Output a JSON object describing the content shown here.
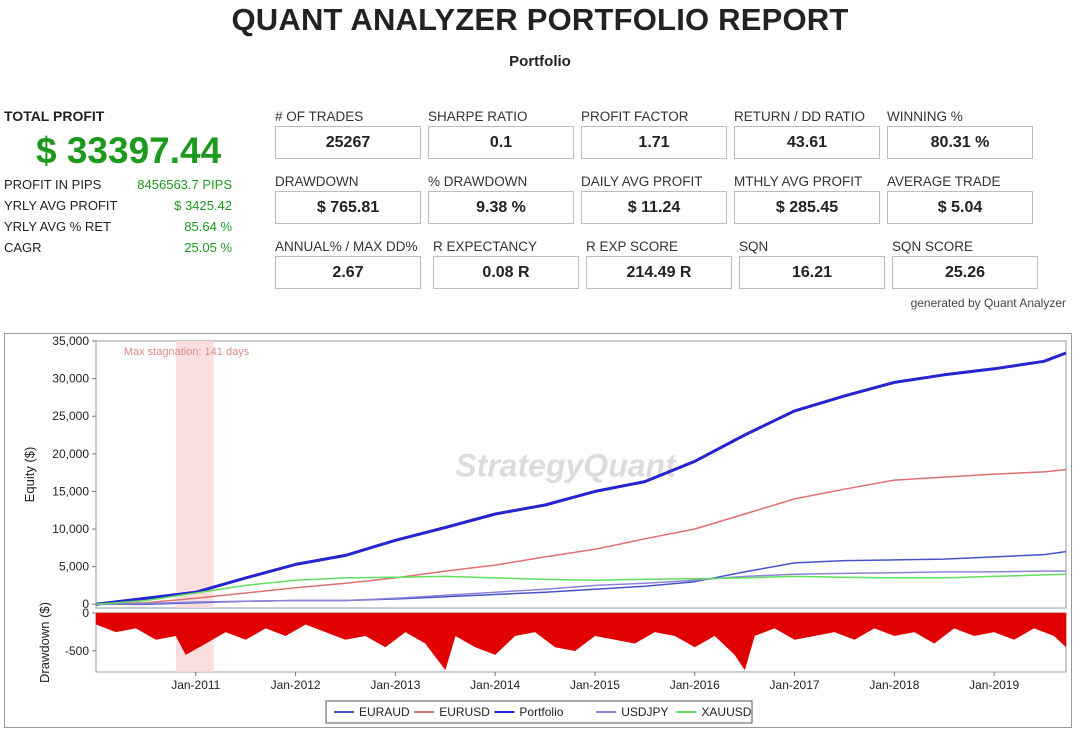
{
  "report": {
    "title": "QUANT ANALYZER PORTFOLIO REPORT",
    "subtitle": "Portfolio",
    "generated_by": "generated by Quant Analyzer"
  },
  "summary": {
    "total_profit_label": "TOTAL PROFIT",
    "total_profit_value": "$ 33397.44",
    "rows": [
      {
        "label": "PROFIT IN PIPS",
        "value": "8456563.7 PIPS"
      },
      {
        "label": "YRLY AVG PROFIT",
        "value": "$ 3425.42"
      },
      {
        "label": "YRLY AVG % RET",
        "value": "85.64 %"
      },
      {
        "label": "CAGR",
        "value": "25.05 %"
      }
    ]
  },
  "metrics": [
    {
      "label": "# OF TRADES",
      "value": "25267"
    },
    {
      "label": "SHARPE RATIO",
      "value": "0.1"
    },
    {
      "label": "PROFIT FACTOR",
      "value": "1.71"
    },
    {
      "label": "RETURN / DD RATIO",
      "value": "43.61"
    },
    {
      "label": "WINNING %",
      "value": "80.31 %"
    },
    {
      "label": "DRAWDOWN",
      "value": "$ 765.81"
    },
    {
      "label": "% DRAWDOWN",
      "value": "9.38 %"
    },
    {
      "label": "DAILY AVG PROFIT",
      "value": "$ 11.24"
    },
    {
      "label": "MTHLY AVG PROFIT",
      "value": "$ 285.45"
    },
    {
      "label": "AVERAGE TRADE",
      "value": "$ 5.04"
    },
    {
      "label": "ANNUAL% / MAX DD%",
      "value": "2.67"
    },
    {
      "label": "R EXPECTANCY",
      "value": "0.08 R"
    },
    {
      "label": "R EXP SCORE",
      "value": "214.49 R"
    },
    {
      "label": "SQN",
      "value": "16.21"
    },
    {
      "label": "SQN SCORE",
      "value": "25.26"
    }
  ],
  "chart_data": {
    "type": "line",
    "watermark": "StrategyQuant",
    "annotation": "Max stagnation: 141 days",
    "stagnation_period": {
      "start": 2010.8,
      "end": 2011.18
    },
    "x_range": [
      2010.0,
      2019.72
    ],
    "x_ticks": [
      {
        "x": 2011.0,
        "label": "Jan-2011"
      },
      {
        "x": 2012.0,
        "label": "Jan-2012"
      },
      {
        "x": 2013.0,
        "label": "Jan-2013"
      },
      {
        "x": 2014.0,
        "label": "Jan-2014"
      },
      {
        "x": 2015.0,
        "label": "Jan-2015"
      },
      {
        "x": 2016.0,
        "label": "Jan-2016"
      },
      {
        "x": 2017.0,
        "label": "Jan-2017"
      },
      {
        "x": 2018.0,
        "label": "Jan-2018"
      },
      {
        "x": 2019.0,
        "label": "Jan-2019"
      }
    ],
    "equity": {
      "ylabel": "Equity ($)",
      "ylim": [
        -500,
        35000
      ],
      "y_ticks": [
        {
          "v": 0,
          "label": "0"
        },
        {
          "v": 5000,
          "label": "5,000"
        },
        {
          "v": 10000,
          "label": "10,000"
        },
        {
          "v": 15000,
          "label": "15,000"
        },
        {
          "v": 20000,
          "label": "20,000"
        },
        {
          "v": 25000,
          "label": "25,000"
        },
        {
          "v": 30000,
          "label": "30,000"
        },
        {
          "v": 35000,
          "label": "35,000"
        }
      ],
      "x": [
        2010.0,
        2010.5,
        2011.0,
        2011.5,
        2012.0,
        2012.5,
        2013.0,
        2013.5,
        2014.0,
        2014.5,
        2015.0,
        2015.5,
        2016.0,
        2016.5,
        2017.0,
        2017.5,
        2018.0,
        2018.5,
        2019.0,
        2019.5,
        2019.72
      ],
      "series": [
        {
          "name": "EURAUD",
          "color": "#4355c9",
          "width": 1.5,
          "values": [
            0,
            0,
            200,
            400,
            500,
            500,
            700,
            1000,
            1300,
            1600,
            2000,
            2400,
            3000,
            4300,
            5500,
            5800,
            5900,
            6000,
            6300,
            6600,
            7000
          ]
        },
        {
          "name": "EURUSD",
          "color": "#e07070",
          "width": 1.5,
          "values": [
            0,
            200,
            800,
            1500,
            2200,
            2800,
            3500,
            4400,
            5200,
            6300,
            7300,
            8700,
            10000,
            12000,
            14000,
            15300,
            16500,
            16900,
            17300,
            17600,
            17900
          ]
        },
        {
          "name": "Portfolio",
          "color": "#2424d0",
          "width": 3,
          "values": [
            0,
            800,
            1600,
            3500,
            5300,
            6500,
            8500,
            10200,
            12000,
            13200,
            15000,
            16300,
            19000,
            22500,
            25700,
            27700,
            29500,
            30500,
            31300,
            32300,
            33400
          ]
        },
        {
          "name": "USDJPY",
          "color": "#8d84d8",
          "width": 1.5,
          "values": [
            0,
            100,
            300,
            400,
            500,
            500,
            800,
            1200,
            1600,
            2000,
            2500,
            2800,
            3200,
            3700,
            4000,
            4100,
            4200,
            4300,
            4300,
            4400,
            4400
          ]
        },
        {
          "name": "XAUUSD",
          "color": "#5fe05f",
          "width": 1.5,
          "values": [
            0,
            500,
            1500,
            2500,
            3200,
            3500,
            3600,
            3700,
            3500,
            3300,
            3200,
            3300,
            3400,
            3500,
            3700,
            3600,
            3500,
            3500,
            3700,
            3900,
            4000
          ]
        }
      ]
    },
    "drawdown": {
      "ylabel": "Drawdown ($)",
      "ylim": [
        -780,
        0
      ],
      "y_ticks": [
        {
          "v": 0,
          "label": "0"
        },
        {
          "v": -500,
          "label": "-500"
        }
      ],
      "color": "#e00000",
      "x": [
        2010.0,
        2010.2,
        2010.4,
        2010.6,
        2010.8,
        2010.9,
        2011.1,
        2011.3,
        2011.5,
        2011.7,
        2011.9,
        2012.1,
        2012.3,
        2012.5,
        2012.7,
        2012.9,
        2013.1,
        2013.3,
        2013.5,
        2013.6,
        2013.8,
        2014.0,
        2014.2,
        2014.4,
        2014.6,
        2014.8,
        2015.0,
        2015.2,
        2015.4,
        2015.6,
        2015.8,
        2016.0,
        2016.2,
        2016.4,
        2016.5,
        2016.6,
        2016.8,
        2017.0,
        2017.2,
        2017.4,
        2017.6,
        2017.8,
        2018.0,
        2018.2,
        2018.4,
        2018.6,
        2018.8,
        2019.0,
        2019.2,
        2019.4,
        2019.6,
        2019.72
      ],
      "values": [
        -150,
        -250,
        -200,
        -350,
        -300,
        -550,
        -400,
        -250,
        -350,
        -200,
        -300,
        -150,
        -250,
        -350,
        -300,
        -450,
        -250,
        -400,
        -750,
        -300,
        -450,
        -550,
        -300,
        -250,
        -450,
        -500,
        -300,
        -350,
        -400,
        -250,
        -300,
        -450,
        -300,
        -550,
        -750,
        -300,
        -200,
        -350,
        -300,
        -250,
        -350,
        -200,
        -300,
        -250,
        -400,
        -200,
        -300,
        -250,
        -350,
        -200,
        -300,
        -450
      ]
    },
    "legend": {
      "placement": "bottom-center"
    }
  }
}
